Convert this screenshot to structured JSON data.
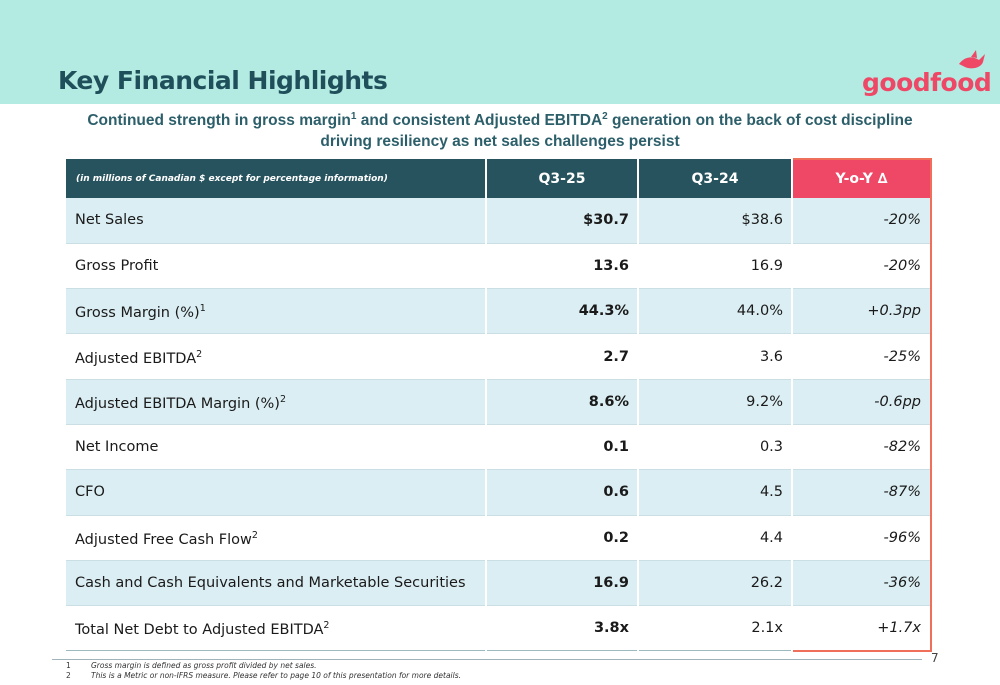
{
  "header": {
    "title": "Key Financial Highlights",
    "logo_text": "goodfood",
    "colors": {
      "band": "#b3ebe3",
      "title": "#1f4f5a",
      "logo": "#ee4866"
    }
  },
  "subtitle": {
    "part1": "Continued strength in gross margin",
    "sup1": "1",
    "part2": " and consistent Adjusted EBITDA",
    "sup2": "2",
    "part3": " generation on the back of cost discipline driving resiliency as net sales challenges persist"
  },
  "table": {
    "header": {
      "label": "(in millions of Canadian $ except for percentage information)",
      "col1": "Q3-25",
      "col2": "Q3-24",
      "col3": "Y-o-Y ∆"
    },
    "rows": [
      {
        "metric": "Net Sales",
        "sup": "",
        "q325": "$30.7",
        "q324": "$38.6",
        "yoy": "-20%"
      },
      {
        "metric": "Gross Profit",
        "sup": "",
        "q325": "13.6",
        "q324": "16.9",
        "yoy": "-20%"
      },
      {
        "metric": "Gross Margin (%)",
        "sup": "1",
        "q325": "44.3%",
        "q324": "44.0%",
        "yoy": "+0.3pp"
      },
      {
        "metric": "Adjusted EBITDA",
        "sup": "2",
        "q325": "2.7",
        "q324": "3.6",
        "yoy": "-25%"
      },
      {
        "metric": "Adjusted EBITDA Margin (%)",
        "sup": "2",
        "q325": "8.6%",
        "q324": "9.2%",
        "yoy": "-0.6pp"
      },
      {
        "metric": "Net Income",
        "sup": "",
        "q325": "0.1",
        "q324": "0.3",
        "yoy": "-82%"
      },
      {
        "metric": "CFO",
        "sup": "",
        "q325": "0.6",
        "q324": "4.5",
        "yoy": "-87%"
      },
      {
        "metric": "Adjusted Free Cash Flow",
        "sup": "2",
        "q325": "0.2",
        "q324": "4.4",
        "yoy": "-96%"
      },
      {
        "metric": "Cash and Cash Equivalents and Marketable Securities",
        "sup": "",
        "q325": "16.9",
        "q324": "26.2",
        "yoy": "-36%"
      },
      {
        "metric": "Total Net Debt to Adjusted EBITDA",
        "sup": "2",
        "q325": "3.8x",
        "q324": "2.1x",
        "yoy": "+1.7x"
      }
    ],
    "colors": {
      "header": "#27535e",
      "yoy_header": "#ee4866",
      "row_alt": "#dbeef3",
      "yoy_border": "#ef6f5b"
    }
  },
  "footnotes": [
    {
      "num": "1",
      "text": "Gross margin is defined as gross profit divided by net sales."
    },
    {
      "num": "2",
      "text": "This is a Metric or non-IFRS measure. Please refer to page 10 of this presentation for more details."
    }
  ],
  "page_number": "7"
}
